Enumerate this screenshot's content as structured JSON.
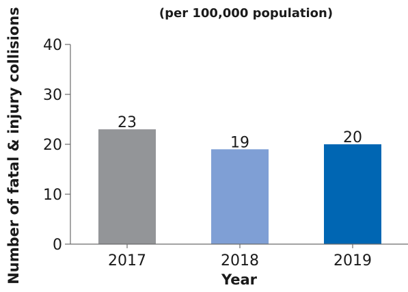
{
  "chart_data": {
    "type": "bar",
    "title": "",
    "subtitle": "(per 100,000 population)",
    "categories": [
      "2017",
      "2018",
      "2019"
    ],
    "values": [
      23,
      19,
      20
    ],
    "data_labels": [
      "23",
      "19",
      "20"
    ],
    "xlabel": "Year",
    "ylabel": "Number of fatal & injury collisions",
    "ylim": [
      0,
      40
    ],
    "yticks": [
      0,
      10,
      20,
      30,
      40
    ],
    "ytick_labels": [
      "0",
      "10",
      "20",
      "30",
      "40"
    ],
    "grid": false,
    "legend": "none",
    "bar_colors": [
      "#939598",
      "#7f9fd5",
      "#0066b3"
    ]
  }
}
